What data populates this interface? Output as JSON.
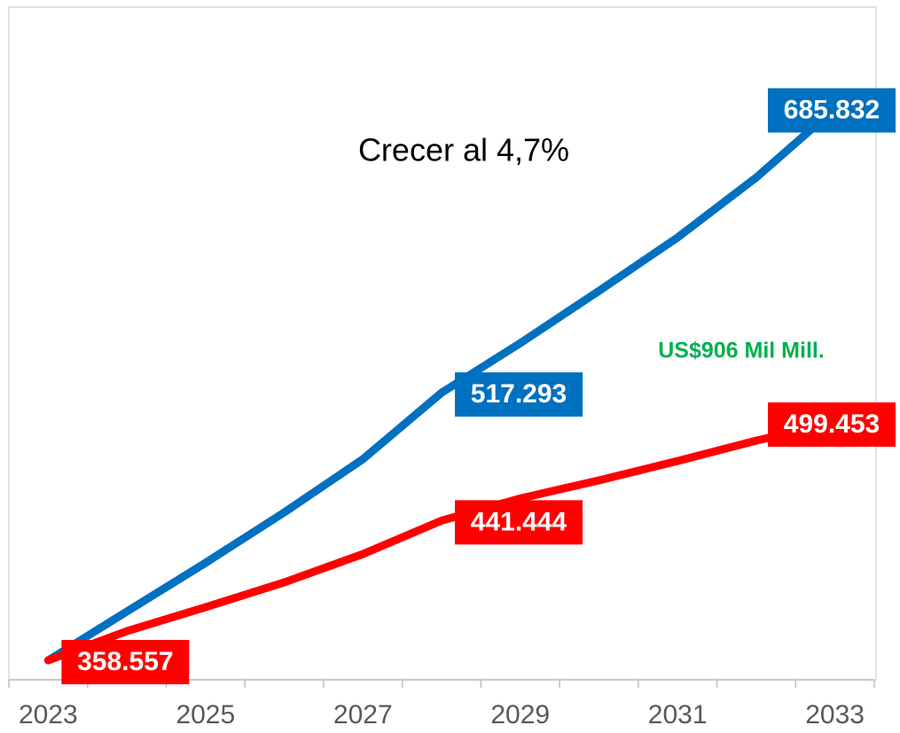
{
  "chart_data": {
    "type": "line",
    "annotations": [
      "Crecer al 4,7%",
      "US$906 Mil Mill."
    ],
    "categories": [
      "2023",
      null,
      "2025",
      null,
      "2027",
      null,
      "2029",
      null,
      "2031",
      null,
      "2033"
    ],
    "series": [
      {
        "color": "#0070c0",
        "values": [
          358.557,
          387.5,
          416.4,
          446.3,
          477.9,
          517.293,
          546.7,
          577.7,
          609.4,
          645.0,
          685.832
        ],
        "value_labels": [
          null,
          null,
          null,
          null,
          null,
          "517.293",
          null,
          null,
          null,
          null,
          "685.832"
        ]
      },
      {
        "color": "#ff0000",
        "values": [
          358.557,
          375.9,
          390.1,
          404.8,
          421.6,
          441.444,
          454.6,
          465.3,
          476.8,
          488.9,
          499.453
        ],
        "value_labels": [
          "358.557",
          null,
          null,
          null,
          null,
          "441.444",
          null,
          null,
          null,
          null,
          "499.453"
        ]
      }
    ],
    "ylim": [
      347,
      745
    ],
    "annotation_colors": [
      "#000000",
      "#00b050"
    ]
  }
}
